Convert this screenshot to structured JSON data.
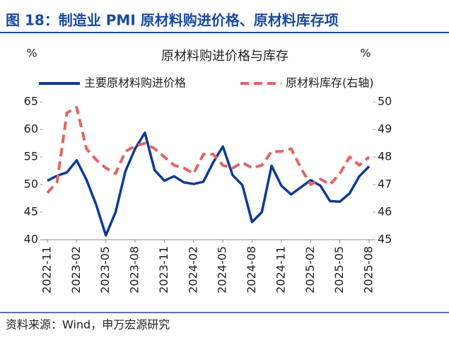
{
  "chart_data": {
    "type": "line",
    "header": "图 18：制造业 PMI 原材料购进价格、原材料库存项",
    "title": "原材料购进价格与库存",
    "y_unit": "%",
    "y2_unit": "%",
    "source": "资料来源：Wind，申万宏源研究",
    "categories": [
      "2022-11",
      null,
      null,
      "2023-02",
      null,
      null,
      "2023-05",
      null,
      null,
      "2023-08",
      null,
      null,
      "2023-11",
      null,
      null,
      "2024-02",
      null,
      null,
      "2024-05",
      null,
      null,
      "2024-08",
      null,
      null,
      "2024-11",
      null,
      null,
      "2025-02",
      null,
      null,
      "2025-05",
      null,
      null,
      "2025-08"
    ],
    "series": [
      {
        "name": "主要原材料购进价格",
        "color": "#0e3a93",
        "style": "solid",
        "values": [
          50.7,
          51.6,
          52.2,
          54.4,
          50.9,
          46.4,
          40.8,
          45.0,
          52.4,
          56.5,
          59.4,
          52.6,
          50.7,
          51.5,
          50.4,
          50.1,
          50.5,
          54.0,
          56.9,
          51.7,
          49.9,
          43.2,
          45.0,
          53.4,
          49.8,
          48.2,
          49.5,
          50.8,
          49.8,
          47.0,
          46.9,
          48.4,
          51.5,
          53.3
        ]
      },
      {
        "name": "原材料库存(右轴)",
        "color": "#e06666",
        "style": "dashed",
        "axis": "y2",
        "values": [
          46.7,
          47.1,
          49.6,
          49.8,
          48.3,
          47.9,
          47.6,
          47.4,
          48.2,
          48.4,
          48.5,
          48.3,
          48.0,
          47.7,
          47.6,
          47.4,
          48.1,
          48.1,
          47.7,
          47.6,
          47.8,
          47.6,
          47.7,
          48.2,
          48.2,
          48.3,
          47.6,
          47.0,
          47.2,
          47.0,
          47.4,
          48.0,
          47.7,
          48.0
        ]
      }
    ],
    "ylim": [
      40,
      65
    ],
    "yticks": [
      40,
      45,
      50,
      55,
      60,
      65
    ],
    "y2lim": [
      45,
      50
    ],
    "y2ticks": [
      45,
      46,
      47,
      48,
      49,
      50
    ],
    "grid": false
  }
}
